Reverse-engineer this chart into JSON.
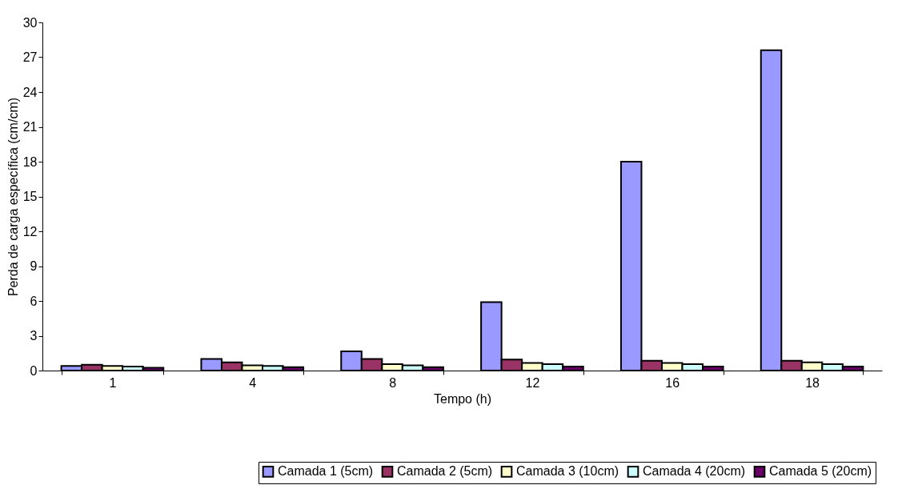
{
  "chart_data": {
    "type": "bar",
    "xlabel": "Tempo (h)",
    "ylabel": "Perda de carga específica (cm/cm)",
    "categories": [
      "1",
      "4",
      "8",
      "12",
      "16",
      "18"
    ],
    "series": [
      {
        "name": "Camada 1 (5cm)",
        "color": "#9999ff",
        "values": [
          0.4,
          1.0,
          1.65,
          5.9,
          18.0,
          27.6
        ]
      },
      {
        "name": "Camada 2 (5cm)",
        "color": "#993366",
        "values": [
          0.5,
          0.7,
          1.0,
          0.95,
          0.85,
          0.85
        ]
      },
      {
        "name": "Camada 3 (10cm)",
        "color": "#ffffcc",
        "values": [
          0.4,
          0.45,
          0.55,
          0.65,
          0.65,
          0.7
        ]
      },
      {
        "name": "Camada 4 (20cm)",
        "color": "#ccffff",
        "values": [
          0.35,
          0.4,
          0.45,
          0.55,
          0.55,
          0.55
        ]
      },
      {
        "name": "Camada 5 (20cm)",
        "color": "#660066",
        "values": [
          0.25,
          0.3,
          0.3,
          0.35,
          0.35,
          0.35
        ]
      }
    ],
    "ylim": [
      0,
      30
    ],
    "yticks": [
      0,
      3,
      6,
      9,
      12,
      15,
      18,
      21,
      24,
      27,
      30
    ],
    "grid": false,
    "legend": "bottom right"
  }
}
